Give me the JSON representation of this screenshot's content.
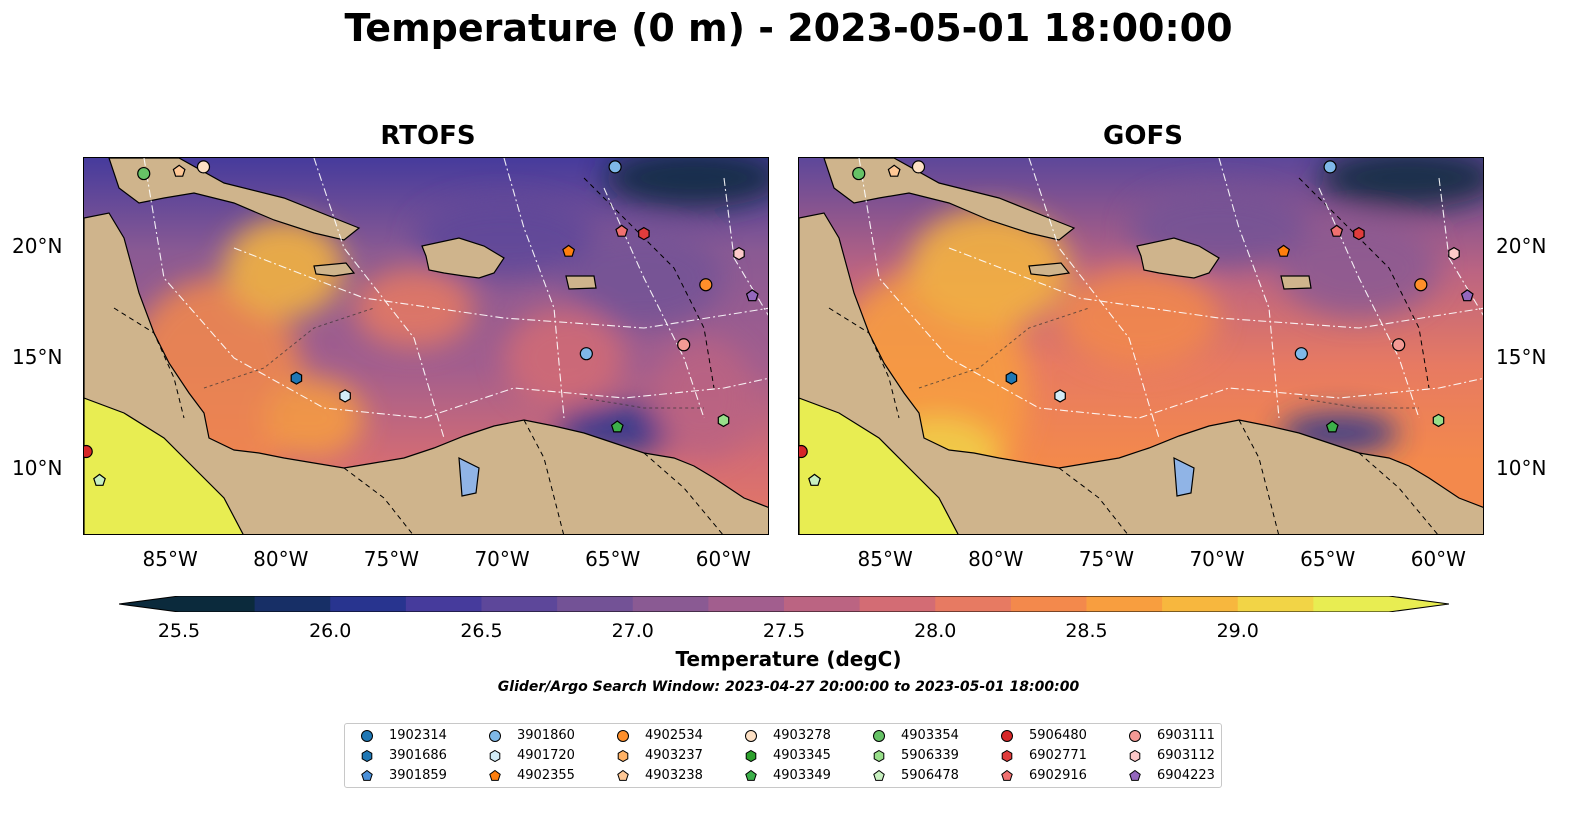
{
  "title": "Temperature (0 m) - 2023-05-01 18:00:00",
  "panels": [
    {
      "id": "rtofs",
      "title": "RTOFS"
    },
    {
      "id": "gofs",
      "title": "GOFS"
    }
  ],
  "axes": {
    "lon_ticks": [
      {
        "value": -85,
        "label": "85°W"
      },
      {
        "value": -80,
        "label": "80°W"
      },
      {
        "value": -75,
        "label": "75°W"
      },
      {
        "value": -70,
        "label": "70°W"
      },
      {
        "value": -65,
        "label": "65°W"
      },
      {
        "value": -60,
        "label": "60°W"
      }
    ],
    "lat_ticks": [
      {
        "value": 20,
        "label": "20°N"
      },
      {
        "value": 15,
        "label": "15°N"
      },
      {
        "value": 10,
        "label": "10°N"
      }
    ],
    "lon_range": [
      -89,
      -58
    ],
    "lat_range": [
      7,
      24
    ]
  },
  "colorbar": {
    "label": "Temperature (degC)",
    "ticks": [
      "25.5",
      "26.0",
      "26.5",
      "27.0",
      "27.5",
      "28.0",
      "28.5",
      "29.0"
    ],
    "min": 25.5,
    "max": 29.25,
    "step": 0.25,
    "colors": [
      "#0b2a3c",
      "#172f66",
      "#28348f",
      "#463b9c",
      "#5d479a",
      "#735296",
      "#8a5a93",
      "#a25e8e",
      "#bb6482",
      "#d36c74",
      "#e77a62",
      "#f3894c",
      "#f89e3f",
      "#f7b73e",
      "#f2d446",
      "#e8ed52"
    ],
    "extend": "both"
  },
  "window_note": "Glider/Argo Search Window: 2023-04-27 20:00:00 to 2023-05-01 18:00:00",
  "colors": {
    "land": "#cfb48c",
    "lakes": "#90b4e6",
    "rivers": "#9bb0c8"
  },
  "legend": [
    {
      "id": "1902314",
      "marker": "circle",
      "color": "#1f77b4"
    },
    {
      "id": "3901686",
      "marker": "hexagon",
      "color": "#1f77b4"
    },
    {
      "id": "3901859",
      "marker": "pentagon",
      "color": "#4a90d9"
    },
    {
      "id": "3901860",
      "marker": "circle",
      "color": "#7fb8e8"
    },
    {
      "id": "4901720",
      "marker": "hexagon",
      "color": "#d3ecf7"
    },
    {
      "id": "4902355",
      "marker": "pentagon",
      "color": "#ff7f0e"
    },
    {
      "id": "4902534",
      "marker": "circle",
      "color": "#ff8f2a"
    },
    {
      "id": "4903237",
      "marker": "hexagon",
      "color": "#ffb266"
    },
    {
      "id": "4903238",
      "marker": "pentagon",
      "color": "#ffc896"
    },
    {
      "id": "4903278",
      "marker": "circle",
      "color": "#fde0c4"
    },
    {
      "id": "4903345",
      "marker": "hexagon",
      "color": "#2ca02c"
    },
    {
      "id": "4903349",
      "marker": "pentagon",
      "color": "#3cb04a"
    },
    {
      "id": "4903354",
      "marker": "circle",
      "color": "#66c266"
    },
    {
      "id": "5906339",
      "marker": "hexagon",
      "color": "#98df8a"
    },
    {
      "id": "5906478",
      "marker": "pentagon",
      "color": "#c8f0c0"
    },
    {
      "id": "5906480",
      "marker": "circle",
      "color": "#d62728"
    },
    {
      "id": "6902771",
      "marker": "hexagon",
      "color": "#e03c3c"
    },
    {
      "id": "6902916",
      "marker": "pentagon",
      "color": "#f07070"
    },
    {
      "id": "6903111",
      "marker": "circle",
      "color": "#f39a94"
    },
    {
      "id": "6903112",
      "marker": "hexagon",
      "color": "#fcc9c9"
    },
    {
      "id": "6904223",
      "marker": "pentagon",
      "color": "#9467bd"
    }
  ],
  "floats": [
    {
      "id": "4903354",
      "lon": -86.3,
      "lat": 23.3
    },
    {
      "id": "4903238",
      "lon": -84.7,
      "lat": 23.4
    },
    {
      "id": "4903278",
      "lon": -83.6,
      "lat": 23.6
    },
    {
      "id": "3901860",
      "lon": -65.0,
      "lat": 23.6
    },
    {
      "id": "6902916",
      "lon": -64.7,
      "lat": 20.7
    },
    {
      "id": "6902771",
      "lon": -63.7,
      "lat": 20.6
    },
    {
      "id": "4902355",
      "lon": -67.1,
      "lat": 19.8
    },
    {
      "id": "6903112",
      "lon": -59.4,
      "lat": 19.7
    },
    {
      "id": "4902534",
      "lon": -60.9,
      "lat": 18.3
    },
    {
      "id": "6904223",
      "lon": -58.8,
      "lat": 17.8
    },
    {
      "id": "6903111",
      "lon": -61.9,
      "lat": 15.6
    },
    {
      "id": "3901860",
      "lon": -66.3,
      "lat": 15.2
    },
    {
      "id": "3901686",
      "lon": -79.4,
      "lat": 14.1
    },
    {
      "id": "4901720",
      "lon": -77.2,
      "lat": 13.3
    },
    {
      "id": "5906339",
      "lon": -60.1,
      "lat": 12.2
    },
    {
      "id": "4903349",
      "lon": -64.9,
      "lat": 11.9
    },
    {
      "id": "5906480",
      "lon": -88.9,
      "lat": 10.8
    },
    {
      "id": "5906478",
      "lon": -88.3,
      "lat": 9.5
    }
  ]
}
